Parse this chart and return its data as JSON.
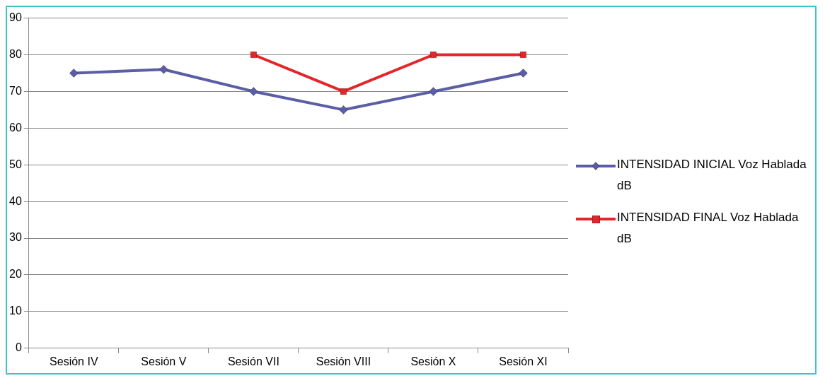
{
  "chart_data": {
    "type": "line",
    "categories": [
      "Sesión IV",
      "Sesión V",
      "Sesión VII",
      "Sesión VIII",
      "Sesión X",
      "Sesión XI"
    ],
    "series": [
      {
        "name": "INTENSIDAD INICIAL Voz Hablada dB",
        "color": "#5b5ea6",
        "marker": "diamond",
        "values": [
          75,
          76,
          70,
          65,
          70,
          75
        ]
      },
      {
        "name": "INTENSIDAD FINAL Voz Hablada dB",
        "color": "#e3262b",
        "marker": "square",
        "values": [
          null,
          null,
          80,
          70,
          80,
          80
        ]
      }
    ],
    "ylim": [
      0,
      90
    ],
    "yticks": [
      0,
      10,
      20,
      30,
      40,
      50,
      60,
      70,
      80,
      90
    ],
    "grid": "y",
    "legend": "right",
    "line_style": "solid"
  }
}
